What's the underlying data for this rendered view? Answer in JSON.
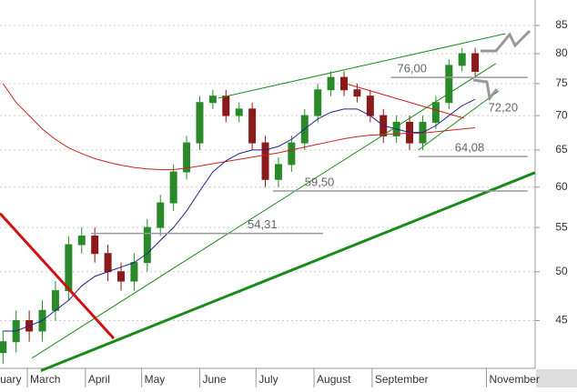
{
  "chart_data": {
    "type": "candlestick",
    "log_scale": true,
    "grid": true,
    "xlim": [
      44.4,
      330
    ],
    "ylim": [
      40.6,
      89.8
    ],
    "yticks": [
      45,
      50,
      55,
      60,
      65,
      70,
      75,
      80,
      85
    ],
    "xticks": [
      {
        "value": 31,
        "label": "February"
      },
      {
        "value": 59,
        "label": "March"
      },
      {
        "value": 90,
        "label": "April"
      },
      {
        "value": 120,
        "label": "May"
      },
      {
        "value": 151,
        "label": "June"
      },
      {
        "value": 181,
        "label": "July"
      },
      {
        "value": 212,
        "label": "August"
      },
      {
        "value": 243,
        "label": "September"
      },
      {
        "value": 304,
        "label": "November"
      }
    ],
    "x": [
      46,
      53,
      60,
      67,
      74,
      81,
      88,
      95,
      102,
      109,
      116,
      123,
      130,
      137,
      144,
      151,
      158,
      165,
      172,
      179,
      186,
      193,
      200,
      207,
      214,
      221,
      228,
      235,
      242,
      249,
      256,
      263,
      270,
      277,
      284,
      291,
      298
    ],
    "open": [
      42,
      43,
      45,
      44,
      46,
      48,
      53,
      54,
      52,
      50,
      49,
      51,
      55,
      58,
      62,
      66,
      72,
      73,
      70,
      71,
      66,
      61,
      63,
      66,
      70,
      74,
      76,
      74,
      73,
      70,
      67,
      69,
      66,
      69,
      72,
      78,
      80
    ],
    "high": [
      44,
      46,
      46,
      47,
      49,
      54,
      55,
      55,
      53,
      51,
      52,
      56,
      59,
      63,
      67,
      73,
      74,
      74,
      72,
      72,
      67,
      64,
      67,
      71,
      75,
      77,
      77,
      75,
      74,
      71,
      70,
      70,
      70,
      73,
      79,
      81,
      81
    ],
    "low": [
      41,
      42,
      43,
      43,
      45,
      47,
      52,
      51,
      49,
      48,
      48,
      50,
      54,
      57,
      61,
      65,
      71,
      69,
      69,
      65,
      60,
      60,
      62,
      65,
      69,
      73,
      73,
      72,
      69,
      66,
      66,
      65,
      65,
      68,
      71,
      77,
      76
    ],
    "close": [
      43,
      45,
      44,
      46,
      48,
      53,
      54,
      52,
      50,
      49,
      51,
      55,
      58,
      62,
      66,
      72,
      73,
      70,
      71,
      66,
      61,
      63,
      66,
      70,
      74,
      76,
      74,
      73,
      70,
      67,
      69,
      66,
      69,
      72,
      78,
      80,
      77
    ],
    "up_color": "#2a8a2a",
    "down_color": "#8b1a1a",
    "series": [
      {
        "color": "#cc2222",
        "values": [
          75,
          72,
          70,
          68,
          66.5,
          65.3,
          64.5,
          63.8,
          63.3,
          62.9,
          62.6,
          62.4,
          62.3,
          62.3,
          62.5,
          62.8,
          63.1,
          63.4,
          63.7,
          64,
          64.3,
          64.6,
          65,
          65.4,
          65.8,
          66.2,
          66.6,
          66.9,
          67.1,
          67.2,
          67.3,
          67.4,
          67.4,
          67.6,
          67.8,
          68,
          68.2
        ]
      },
      {
        "color": "#22228a",
        "values": [
          44,
          44,
          44.5,
          45,
          46,
          47,
          48.5,
          49.5,
          50,
          50.5,
          51,
          52,
          53.5,
          55,
          57,
          59.5,
          62,
          63.5,
          64.5,
          65,
          65,
          65.5,
          66.5,
          68,
          69.5,
          70.5,
          71,
          71,
          70,
          68.5,
          68,
          67.5,
          67.5,
          68.5,
          70,
          71.5,
          72.5
        ]
      }
    ],
    "trend_lines": [
      {
        "color": "#1a8a1a",
        "width": 3,
        "x": [
          66.3,
          329.9
        ],
        "values": [
          40.4,
          61.9
        ]
      },
      {
        "color": "#1a8a1a",
        "width": 1,
        "x": [
          61.4,
          309
        ],
        "values": [
          41.5,
          78.3
        ]
      },
      {
        "color": "#1a8a1a",
        "width": 1,
        "x": [
          161,
          314
        ],
        "values": [
          72.7,
          83.5
        ]
      },
      {
        "color": "#1a8a1a",
        "width": 1,
        "x": [
          267.7,
          310.5
        ],
        "values": [
          65.0,
          73.8
        ]
      },
      {
        "color": "#cc1111",
        "width": 3,
        "x": [
          44.4,
          105.1
        ],
        "values": [
          56.7,
          43.3
        ]
      },
      {
        "color": "#cc1111",
        "width": 1,
        "x": [
          228.9,
          292
        ],
        "values": [
          75.0,
          69.6
        ]
      }
    ],
    "levels": [
      {
        "value": 54.31,
        "label": "54,31",
        "x": [
          93,
          216.8
        ]
      },
      {
        "value": 59.5,
        "label": "59,50",
        "x": [
          190,
          326
        ]
      },
      {
        "value": 64.08,
        "label": "64,08",
        "x": [
          267.7,
          326
        ]
      },
      {
        "value": 76,
        "label": "76,00",
        "x": [
          253,
          326
        ]
      }
    ],
    "target": {
      "value": 72.2,
      "label": "72,20",
      "x": 305
    }
  }
}
